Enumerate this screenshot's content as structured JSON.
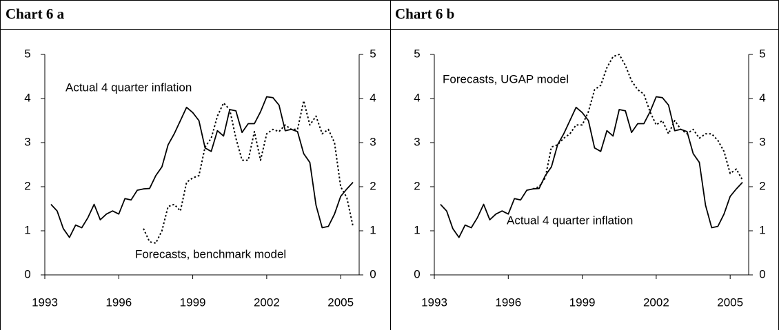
{
  "chart_data": [
    {
      "type": "line",
      "title": "Chart 6 a",
      "x": [
        1993.25,
        1993.5,
        1993.75,
        1994,
        1994.25,
        1994.5,
        1994.75,
        1995,
        1995.25,
        1995.5,
        1995.75,
        1996,
        1996.25,
        1996.5,
        1996.75,
        1997,
        1997.25,
        1997.5,
        1997.75,
        1998,
        1998.25,
        1998.5,
        1998.75,
        1999,
        1999.25,
        1999.5,
        1999.75,
        2000,
        2000.25,
        2000.5,
        2000.75,
        2001,
        2001.25,
        2001.5,
        2001.75,
        2002,
        2002.25,
        2002.5,
        2002.75,
        2003,
        2003.25,
        2003.5,
        2003.75,
        2004,
        2004.25,
        2004.5,
        2004.75,
        2005,
        2005.25,
        2005.5
      ],
      "xlim": [
        1993,
        2005.75
      ],
      "xticks": [
        1993,
        1996,
        1999,
        2002,
        2005
      ],
      "ylim": [
        0,
        5
      ],
      "yticks": [
        0,
        1,
        2,
        3,
        4,
        5
      ],
      "y2lim": [
        0,
        5
      ],
      "y2ticks": [
        0,
        1,
        2,
        3,
        4,
        5
      ],
      "series": [
        {
          "name": "Actual 4 quarter inflation",
          "color": "#000000",
          "style": "solid",
          "values": [
            1.6,
            1.45,
            1.05,
            0.85,
            1.13,
            1.07,
            1.3,
            1.6,
            1.25,
            1.38,
            1.45,
            1.38,
            1.73,
            1.7,
            1.92,
            1.95,
            1.96,
            2.25,
            2.45,
            2.95,
            3.2,
            3.5,
            3.8,
            3.68,
            3.5,
            2.88,
            2.8,
            3.27,
            3.15,
            3.75,
            3.72,
            3.23,
            3.43,
            3.43,
            3.7,
            4.04,
            4.02,
            3.85,
            3.27,
            3.3,
            3.25,
            2.75,
            2.55,
            1.58,
            1.07,
            1.1,
            1.38,
            1.78,
            1.95,
            2.1
          ]
        },
        {
          "name": "Forecasts, benchmark model",
          "color": "#000000",
          "style": "dotted",
          "values": [
            null,
            null,
            null,
            null,
            null,
            null,
            null,
            null,
            null,
            null,
            null,
            null,
            null,
            null,
            null,
            1.05,
            0.75,
            0.72,
            1.0,
            1.55,
            1.6,
            1.45,
            2.1,
            2.2,
            2.25,
            2.9,
            3.1,
            3.6,
            3.9,
            3.75,
            3.1,
            2.6,
            2.6,
            3.25,
            2.6,
            3.2,
            3.3,
            3.25,
            3.4,
            3.3,
            3.3,
            3.95,
            3.4,
            3.6,
            3.2,
            3.3,
            3.0,
            2.0,
            1.75,
            1.1
          ]
        }
      ]
    },
    {
      "type": "line",
      "title": "Chart 6 b",
      "x": [
        1993.25,
        1993.5,
        1993.75,
        1994,
        1994.25,
        1994.5,
        1994.75,
        1995,
        1995.25,
        1995.5,
        1995.75,
        1996,
        1996.25,
        1996.5,
        1996.75,
        1997,
        1997.25,
        1997.5,
        1997.75,
        1998,
        1998.25,
        1998.5,
        1998.75,
        1999,
        1999.25,
        1999.5,
        1999.75,
        2000,
        2000.25,
        2000.5,
        2000.75,
        2001,
        2001.25,
        2001.5,
        2001.75,
        2002,
        2002.25,
        2002.5,
        2002.75,
        2003,
        2003.25,
        2003.5,
        2003.75,
        2004,
        2004.25,
        2004.5,
        2004.75,
        2005,
        2005.25,
        2005.5
      ],
      "xlim": [
        1993,
        2005.75
      ],
      "xticks": [
        1993,
        1996,
        1999,
        2002,
        2005
      ],
      "ylim": [
        0,
        5
      ],
      "yticks": [
        0,
        1,
        2,
        3,
        4,
        5
      ],
      "y2lim": [
        0,
        5
      ],
      "y2ticks": [
        0,
        1,
        2,
        3,
        4,
        5
      ],
      "series": [
        {
          "name": "Actual 4 quarter inflation",
          "color": "#000000",
          "style": "solid",
          "values": [
            1.6,
            1.45,
            1.05,
            0.85,
            1.13,
            1.07,
            1.3,
            1.6,
            1.25,
            1.38,
            1.45,
            1.38,
            1.73,
            1.7,
            1.92,
            1.95,
            1.96,
            2.25,
            2.45,
            2.95,
            3.2,
            3.5,
            3.8,
            3.68,
            3.5,
            2.88,
            2.8,
            3.27,
            3.15,
            3.75,
            3.72,
            3.23,
            3.43,
            3.43,
            3.7,
            4.04,
            4.02,
            3.85,
            3.27,
            3.3,
            3.25,
            2.75,
            2.55,
            1.58,
            1.07,
            1.1,
            1.38,
            1.78,
            1.95,
            2.1
          ]
        },
        {
          "name": "Forecasts, UGAP model",
          "color": "#000000",
          "style": "dotted",
          "values": [
            null,
            null,
            null,
            null,
            null,
            null,
            null,
            null,
            null,
            null,
            null,
            null,
            null,
            null,
            null,
            1.95,
            2.0,
            2.2,
            2.9,
            2.95,
            3.1,
            3.2,
            3.4,
            3.4,
            3.7,
            4.2,
            4.3,
            4.7,
            4.95,
            5.0,
            4.75,
            4.4,
            4.2,
            4.1,
            3.7,
            3.4,
            3.5,
            3.2,
            3.5,
            3.3,
            3.2,
            3.3,
            3.1,
            3.2,
            3.2,
            3.05,
            2.8,
            2.3,
            2.4,
            2.15
          ]
        }
      ]
    }
  ]
}
